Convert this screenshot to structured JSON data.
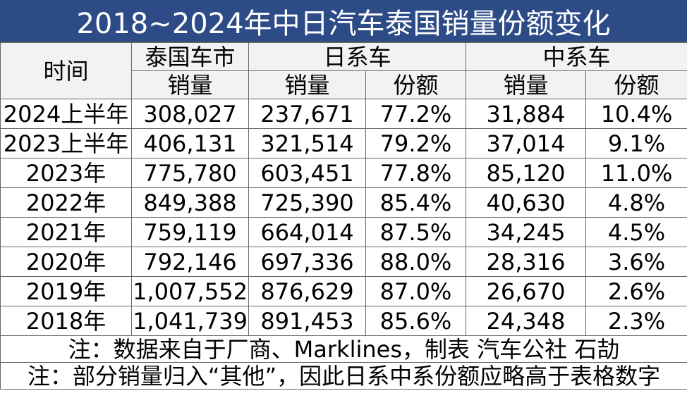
{
  "title": "2018~2024年中日汽车泰国销量份额变化",
  "header": {
    "time": "时间",
    "thai_market": "泰国车市",
    "japanese": "日系车",
    "chinese": "中系车",
    "sales": "销量",
    "share": "份额"
  },
  "rows": [
    {
      "period": "2024上半年",
      "total": "308,027",
      "jp_sales": "237,671",
      "jp_share": "77.2%",
      "cn_sales": "31,884",
      "cn_share": "10.4%"
    },
    {
      "period": "2023上半年",
      "total": "406,131",
      "jp_sales": "321,514",
      "jp_share": "79.2%",
      "cn_sales": "37,014",
      "cn_share": "9.1%"
    },
    {
      "period": "2023年",
      "total": "775,780",
      "jp_sales": "603,451",
      "jp_share": "77.8%",
      "cn_sales": "85,120",
      "cn_share": "11.0%"
    },
    {
      "period": "2022年",
      "total": "849,388",
      "jp_sales": "725,390",
      "jp_share": "85.4%",
      "cn_sales": "40,630",
      "cn_share": "4.8%"
    },
    {
      "period": "2021年",
      "total": "759,119",
      "jp_sales": "664,014",
      "jp_share": "87.5%",
      "cn_sales": "34,245",
      "cn_share": "4.5%"
    },
    {
      "period": "2020年",
      "total": "792,146",
      "jp_sales": "697,336",
      "jp_share": "88.0%",
      "cn_sales": "28,316",
      "cn_share": "3.6%"
    },
    {
      "period": "2019年",
      "total": "1,007,552",
      "jp_sales": "876,629",
      "jp_share": "87.0%",
      "cn_sales": "26,670",
      "cn_share": "2.6%"
    },
    {
      "period": "2018年",
      "total": "1,041,739",
      "jp_sales": "891,453",
      "jp_share": "85.6%",
      "cn_sales": "24,348",
      "cn_share": "2.3%"
    }
  ],
  "notes": [
    "注：数据来自于厂商、Marklines，制表 汽车公社 石劼",
    "注：部分销量归入“其他”，因此日系中系份额应略高于表格数字"
  ],
  "colors": {
    "title_bg": "#2c4b87",
    "title_text": "#ffffff",
    "header_bg": "#f2f2f2",
    "border": "#666666"
  },
  "chart_data": {
    "type": "table",
    "title": "2018~2024年中日汽车泰国销量份额变化",
    "columns": [
      "时间",
      "泰国车市 销量",
      "日系车 销量",
      "日系车 份额",
      "中系车 销量",
      "中系车 份额"
    ],
    "rows": [
      [
        "2024上半年",
        308027,
        237671,
        "77.2%",
        31884,
        "10.4%"
      ],
      [
        "2023上半年",
        406131,
        321514,
        "79.2%",
        37014,
        "9.1%"
      ],
      [
        "2023年",
        775780,
        603451,
        "77.8%",
        85120,
        "11.0%"
      ],
      [
        "2022年",
        849388,
        725390,
        "85.4%",
        40630,
        "4.8%"
      ],
      [
        "2021年",
        759119,
        664014,
        "87.5%",
        34245,
        "4.5%"
      ],
      [
        "2020年",
        792146,
        697336,
        "88.0%",
        28316,
        "3.6%"
      ],
      [
        "2019年",
        1007552,
        876629,
        "87.0%",
        26670,
        "2.6%"
      ],
      [
        "2018年",
        1041739,
        891453,
        "85.6%",
        24348,
        "2.3%"
      ]
    ]
  }
}
